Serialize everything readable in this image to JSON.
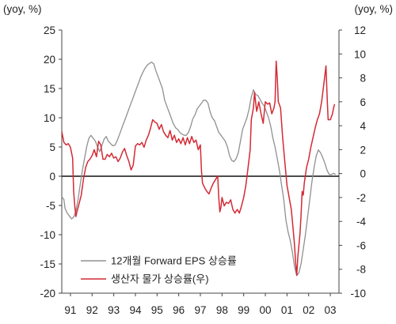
{
  "chart_data": {
    "type": "line",
    "left_unit": "(yoy, %)",
    "right_unit": "(yoy, %)",
    "x_ticks": [
      "91",
      "92",
      "93",
      "94",
      "95",
      "96",
      "97",
      "98",
      "99",
      "00",
      "01",
      "02",
      "03"
    ],
    "x_range": [
      1990.6,
      2003.4
    ],
    "left_axis": {
      "ylim": [
        -20,
        25
      ],
      "ticks": [
        25,
        20,
        15,
        10,
        5,
        0,
        -5,
        -10,
        -15,
        -20
      ]
    },
    "right_axis": {
      "ylim": [
        -10,
        12
      ],
      "ticks": [
        12,
        10,
        8,
        6,
        4,
        2,
        0,
        -2,
        -4,
        -6,
        -8,
        -10
      ]
    },
    "legend_placement": "bottom-left",
    "series": [
      {
        "name": "12개월 Forward EPS 상승률",
        "axis": "left",
        "color": "#909090",
        "points": [
          [
            1990.6,
            -3.5
          ],
          [
            1990.7,
            -4
          ],
          [
            1990.75,
            -5.5
          ],
          [
            1990.85,
            -6.3
          ],
          [
            1990.95,
            -6.8
          ],
          [
            1991.05,
            -7.3
          ],
          [
            1991.15,
            -7.0
          ],
          [
            1991.25,
            -6.0
          ],
          [
            1991.35,
            -4.0
          ],
          [
            1991.45,
            -1.5
          ],
          [
            1991.55,
            1.0
          ],
          [
            1991.65,
            3.0
          ],
          [
            1991.75,
            5.0
          ],
          [
            1991.85,
            6.5
          ],
          [
            1991.95,
            7.0
          ],
          [
            1992.05,
            6.5
          ],
          [
            1992.15,
            6.0
          ],
          [
            1992.25,
            5.0
          ],
          [
            1992.35,
            4.2
          ],
          [
            1992.45,
            5.2
          ],
          [
            1992.55,
            6.3
          ],
          [
            1992.65,
            6.8
          ],
          [
            1992.75,
            6.0
          ],
          [
            1992.85,
            5.6
          ],
          [
            1992.95,
            5.2
          ],
          [
            1993.05,
            5.3
          ],
          [
            1993.15,
            6.0
          ],
          [
            1993.25,
            7.0
          ],
          [
            1993.35,
            8.0
          ],
          [
            1993.45,
            9.0
          ],
          [
            1993.55,
            10.0
          ],
          [
            1993.65,
            11.0
          ],
          [
            1993.75,
            12.0
          ],
          [
            1993.85,
            13.0
          ],
          [
            1993.95,
            14.0
          ],
          [
            1994.05,
            15.0
          ],
          [
            1994.15,
            16.0
          ],
          [
            1994.25,
            17.0
          ],
          [
            1994.35,
            17.8
          ],
          [
            1994.45,
            18.5
          ],
          [
            1994.55,
            19.0
          ],
          [
            1994.65,
            19.3
          ],
          [
            1994.75,
            19.5
          ],
          [
            1994.85,
            19.2
          ],
          [
            1994.95,
            18.0
          ],
          [
            1995.05,
            17.0
          ],
          [
            1995.15,
            16.0
          ],
          [
            1995.25,
            15.0
          ],
          [
            1995.35,
            13.0
          ],
          [
            1995.45,
            12.0
          ],
          [
            1995.55,
            11.0
          ],
          [
            1995.65,
            10.0
          ],
          [
            1995.75,
            9.0
          ],
          [
            1995.85,
            8.3
          ],
          [
            1995.95,
            8.0
          ],
          [
            1996.05,
            7.5
          ],
          [
            1996.15,
            7.2
          ],
          [
            1996.25,
            7.0
          ],
          [
            1996.35,
            7.0
          ],
          [
            1996.45,
            7.5
          ],
          [
            1996.55,
            8.5
          ],
          [
            1996.65,
            9.8
          ],
          [
            1996.75,
            10.5
          ],
          [
            1996.85,
            11.5
          ],
          [
            1996.95,
            12.0
          ],
          [
            1997.05,
            12.5
          ],
          [
            1997.15,
            13.0
          ],
          [
            1997.25,
            13.0
          ],
          [
            1997.35,
            12.5
          ],
          [
            1997.45,
            11.0
          ],
          [
            1997.55,
            10.0
          ],
          [
            1997.65,
            9.5
          ],
          [
            1997.75,
            8.5
          ],
          [
            1997.85,
            7.5
          ],
          [
            1997.95,
            7.0
          ],
          [
            1998.05,
            6.5
          ],
          [
            1998.15,
            6.0
          ],
          [
            1998.25,
            5.0
          ],
          [
            1998.35,
            3.5
          ],
          [
            1998.45,
            2.7
          ],
          [
            1998.55,
            2.5
          ],
          [
            1998.65,
            3.0
          ],
          [
            1998.75,
            4.0
          ],
          [
            1998.85,
            6.0
          ],
          [
            1998.95,
            8.0
          ],
          [
            1999.05,
            9.0
          ],
          [
            1999.15,
            10.0
          ],
          [
            1999.25,
            11.5
          ],
          [
            1999.35,
            13.5
          ],
          [
            1999.45,
            14.8
          ],
          [
            1999.55,
            14.0
          ],
          [
            1999.65,
            13.8
          ],
          [
            1999.75,
            13.2
          ],
          [
            1999.85,
            12.5
          ],
          [
            1999.95,
            12.0
          ],
          [
            2000.05,
            11.0
          ],
          [
            2000.15,
            10.0
          ],
          [
            2000.25,
            8.5
          ],
          [
            2000.35,
            6.5
          ],
          [
            2000.45,
            5.0
          ],
          [
            2000.55,
            3.0
          ],
          [
            2000.65,
            1.0
          ],
          [
            2000.75,
            -1.5
          ],
          [
            2000.85,
            -4.0
          ],
          [
            2000.95,
            -7.5
          ],
          [
            2001.05,
            -9.5
          ],
          [
            2001.15,
            -11.0
          ],
          [
            2001.25,
            -13.0
          ],
          [
            2001.35,
            -15.5
          ],
          [
            2001.45,
            -17.0
          ],
          [
            2001.55,
            -16.5
          ],
          [
            2001.65,
            -15.0
          ],
          [
            2001.75,
            -12.5
          ],
          [
            2001.85,
            -10.0
          ],
          [
            2001.95,
            -7.0
          ],
          [
            2002.05,
            -4.0
          ],
          [
            2002.15,
            -1.0
          ],
          [
            2002.25,
            1.5
          ],
          [
            2002.35,
            3.5
          ],
          [
            2002.45,
            4.5
          ],
          [
            2002.55,
            4.0
          ],
          [
            2002.65,
            3.2
          ],
          [
            2002.75,
            2.2
          ],
          [
            2002.85,
            1.0
          ],
          [
            2002.95,
            0.3
          ],
          [
            2003.05,
            0.3
          ],
          [
            2003.15,
            0.5
          ],
          [
            2003.25,
            0.3
          ]
        ]
      },
      {
        "name": "생산자 물가 상승률(우)",
        "axis": "right",
        "color": "#d42a35",
        "points": [
          [
            1990.6,
            3.5
          ],
          [
            1990.7,
            2.6
          ],
          [
            1990.8,
            2.4
          ],
          [
            1990.9,
            2.5
          ],
          [
            1991.0,
            2.2
          ],
          [
            1991.1,
            1.3
          ],
          [
            1991.15,
            -1.5
          ],
          [
            1991.2,
            -2.7
          ],
          [
            1991.25,
            -3.6
          ],
          [
            1991.3,
            -3.2
          ],
          [
            1991.4,
            -2.5
          ],
          [
            1991.5,
            -1.8
          ],
          [
            1991.6,
            -0.5
          ],
          [
            1991.7,
            0.5
          ],
          [
            1991.8,
            1.0
          ],
          [
            1991.9,
            1.2
          ],
          [
            1992.0,
            1.5
          ],
          [
            1992.1,
            2.0
          ],
          [
            1992.2,
            1.4
          ],
          [
            1992.3,
            2.7
          ],
          [
            1992.4,
            2.4
          ],
          [
            1992.5,
            1.2
          ],
          [
            1992.6,
            1.2
          ],
          [
            1992.7,
            1.6
          ],
          [
            1992.8,
            1.4
          ],
          [
            1992.9,
            1.7
          ],
          [
            1993.0,
            1.3
          ],
          [
            1993.1,
            1.4
          ],
          [
            1993.2,
            1.0
          ],
          [
            1993.3,
            1.3
          ],
          [
            1993.4,
            1.8
          ],
          [
            1993.5,
            2.1
          ],
          [
            1993.6,
            1.5
          ],
          [
            1993.7,
            1.0
          ],
          [
            1993.8,
            0.3
          ],
          [
            1993.9,
            0.7
          ],
          [
            1994.0,
            2.3
          ],
          [
            1994.1,
            2.5
          ],
          [
            1994.2,
            2.4
          ],
          [
            1994.3,
            2.6
          ],
          [
            1994.4,
            2.2
          ],
          [
            1994.5,
            2.8
          ],
          [
            1994.6,
            3.2
          ],
          [
            1994.7,
            3.8
          ],
          [
            1994.8,
            4.5
          ],
          [
            1994.9,
            4.3
          ],
          [
            1995.0,
            4.2
          ],
          [
            1995.1,
            3.7
          ],
          [
            1995.2,
            4.1
          ],
          [
            1995.3,
            3.5
          ],
          [
            1995.4,
            3.2
          ],
          [
            1995.5,
            3.0
          ],
          [
            1995.6,
            3.6
          ],
          [
            1995.7,
            2.8
          ],
          [
            1995.8,
            3.2
          ],
          [
            1995.9,
            2.6
          ],
          [
            1996.0,
            2.9
          ],
          [
            1996.1,
            2.5
          ],
          [
            1996.2,
            3.0
          ],
          [
            1996.3,
            2.4
          ],
          [
            1996.4,
            3.0
          ],
          [
            1996.5,
            2.5
          ],
          [
            1996.6,
            3.1
          ],
          [
            1996.7,
            2.6
          ],
          [
            1996.8,
            2.8
          ],
          [
            1996.9,
            2.0
          ],
          [
            1997.0,
            2.4
          ],
          [
            1997.05,
            0.2
          ],
          [
            1997.1,
            -0.8
          ],
          [
            1997.2,
            -1.2
          ],
          [
            1997.3,
            -1.5
          ],
          [
            1997.4,
            -1.7
          ],
          [
            1997.5,
            -1.2
          ],
          [
            1997.6,
            -0.8
          ],
          [
            1997.7,
            -0.5
          ],
          [
            1997.8,
            -0.2
          ],
          [
            1997.85,
            -2.0
          ],
          [
            1997.9,
            -3.2
          ],
          [
            1997.95,
            -2.8
          ],
          [
            1998.0,
            -2.0
          ],
          [
            1998.1,
            -2.7
          ],
          [
            1998.2,
            -2.4
          ],
          [
            1998.3,
            -2.5
          ],
          [
            1998.4,
            -2.2
          ],
          [
            1998.5,
            -3.0
          ],
          [
            1998.6,
            -3.3
          ],
          [
            1998.7,
            -3.0
          ],
          [
            1998.8,
            -3.3
          ],
          [
            1998.9,
            -2.7
          ],
          [
            1999.0,
            -2.0
          ],
          [
            1999.1,
            -1.0
          ],
          [
            1999.2,
            0.5
          ],
          [
            1999.3,
            2.0
          ],
          [
            1999.35,
            4.5
          ],
          [
            1999.45,
            5.5
          ],
          [
            1999.5,
            6.8
          ],
          [
            1999.55,
            6.0
          ],
          [
            1999.6,
            5.2
          ],
          [
            1999.7,
            6.0
          ],
          [
            1999.8,
            5.0
          ],
          [
            1999.9,
            4.2
          ],
          [
            2000.0,
            6.0
          ],
          [
            2000.1,
            5.8
          ],
          [
            2000.2,
            5.9
          ],
          [
            2000.3,
            5.0
          ],
          [
            2000.4,
            5.5
          ],
          [
            2000.45,
            6.0
          ],
          [
            2000.5,
            9.4
          ],
          [
            2000.55,
            8.0
          ],
          [
            2000.6,
            6.0
          ],
          [
            2000.7,
            5.5
          ],
          [
            2000.8,
            3.0
          ],
          [
            2000.9,
            1.0
          ],
          [
            2001.0,
            -1.0
          ],
          [
            2001.1,
            -2.0
          ],
          [
            2001.2,
            -3.0
          ],
          [
            2001.3,
            -5.0
          ],
          [
            2001.35,
            -6.0
          ],
          [
            2001.4,
            -7.5
          ],
          [
            2001.45,
            -8.5
          ],
          [
            2001.5,
            -7.0
          ],
          [
            2001.6,
            -5.0
          ],
          [
            2001.65,
            -3.5
          ],
          [
            2001.7,
            -1.5
          ],
          [
            2001.75,
            -1.8
          ],
          [
            2001.8,
            -0.8
          ],
          [
            2001.9,
            0.5
          ],
          [
            2002.0,
            1.2
          ],
          [
            2002.1,
            2.2
          ],
          [
            2002.2,
            3.0
          ],
          [
            2002.3,
            3.8
          ],
          [
            2002.4,
            4.5
          ],
          [
            2002.5,
            5.0
          ],
          [
            2002.6,
            6.0
          ],
          [
            2002.7,
            7.5
          ],
          [
            2002.8,
            9.0
          ],
          [
            2002.85,
            6.5
          ],
          [
            2002.9,
            4.5
          ],
          [
            2003.0,
            4.5
          ],
          [
            2003.1,
            5.0
          ],
          [
            2003.15,
            5.5
          ],
          [
            2003.2,
            5.8
          ]
        ]
      }
    ]
  }
}
